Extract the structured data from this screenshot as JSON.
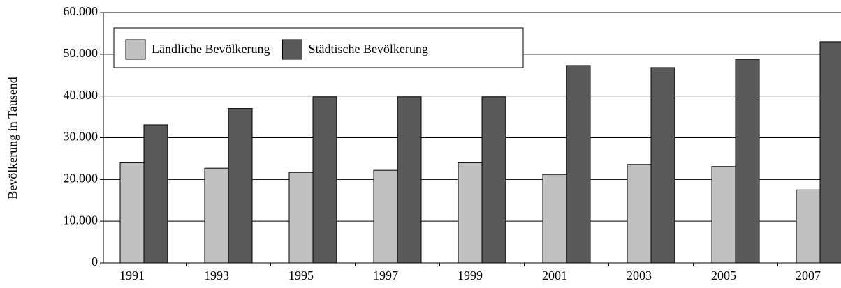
{
  "chart_data": {
    "type": "bar",
    "y_label": "Bevölkerung in Tausend",
    "categories": [
      "1991",
      "1993",
      "1995",
      "1997",
      "1999",
      "2001",
      "2003",
      "2005",
      "2007"
    ],
    "series": [
      {
        "name": "Ländliche Bevölkerung",
        "color": "#c0c0c0",
        "values": [
          24000,
          22700,
          21700,
          22200,
          24000,
          21200,
          23600,
          23100,
          17500
        ]
      },
      {
        "name": "Städtische Bevölkerung",
        "color": "#595959",
        "values": [
          33100,
          37000,
          39800,
          39800,
          39800,
          47300,
          46800,
          48800,
          53000
        ]
      }
    ],
    "ylim": [
      0,
      60000
    ],
    "yticks": [
      0,
      {
        "value": 10000,
        "label": "10.000"
      },
      {
        "value": 20000,
        "label": "20.000"
      },
      {
        "value": 30000,
        "label": "30.000"
      },
      {
        "value": 40000,
        "label": "40.000"
      },
      {
        "value": 50000,
        "label": "50.000"
      },
      {
        "value": 60000,
        "label": "60.000"
      }
    ],
    "grid": true,
    "legend": "top-left"
  }
}
